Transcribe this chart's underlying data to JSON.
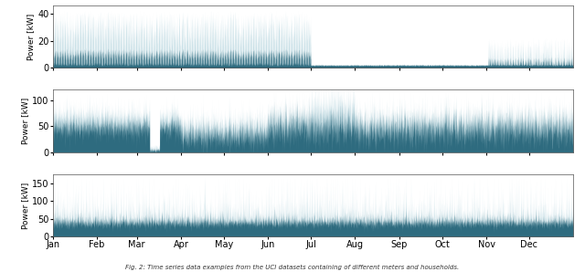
{
  "subplots": [
    {
      "ylabel": "Power [kW]",
      "ylim": [
        0,
        46
      ],
      "yticks": [
        0,
        20,
        40
      ],
      "color_light": "#a8cdd8",
      "color_dark": "#1e5f74",
      "alpha_light": 0.7,
      "alpha_dark": 0.9
    },
    {
      "ylabel": "Power [kW]",
      "ylim": [
        0,
        120
      ],
      "yticks": [
        0,
        50,
        100
      ],
      "color_light": "#a8cdd8",
      "color_dark": "#1e5f74",
      "alpha_light": 0.7,
      "alpha_dark": 0.9
    },
    {
      "ylabel": "Power [kW]",
      "ylim": [
        0,
        175
      ],
      "yticks": [
        0,
        50,
        100,
        150
      ],
      "color_light": "#a8cdd8",
      "color_dark": "#1e5f74",
      "alpha_light": 0.7,
      "alpha_dark": 0.9
    }
  ],
  "months": [
    "Jan",
    "Feb",
    "Mar",
    "Apr",
    "May",
    "Jun",
    "Jul",
    "Aug",
    "Sep",
    "Oct",
    "Nov",
    "Dec"
  ],
  "month_day_starts": [
    1,
    32,
    60,
    91,
    121,
    152,
    182,
    213,
    244,
    274,
    305,
    335
  ],
  "n_hours": 8760,
  "background_color": "#ffffff",
  "caption": "Fig. 2: Time series data examples from the UCI datasets containing of different meters and households."
}
